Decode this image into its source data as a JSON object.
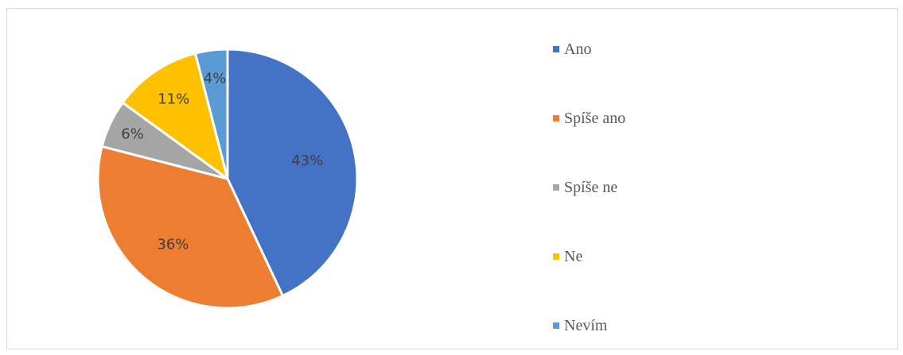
{
  "chart_data": {
    "type": "pie",
    "title": "",
    "categories": [
      "Ano",
      "Spíše ano",
      "Spíše ne",
      "Ne",
      "Nevím"
    ],
    "values": [
      43,
      36,
      6,
      11,
      4
    ],
    "data_labels": [
      "43%",
      "36%",
      "6%",
      "11%",
      "4%"
    ],
    "colors": [
      "#4472c4",
      "#ed7d31",
      "#a5a5a5",
      "#ffc000",
      "#5b9bd5"
    ],
    "start_angle_deg": 0,
    "direction": "clockwise",
    "legend_position": "right"
  }
}
